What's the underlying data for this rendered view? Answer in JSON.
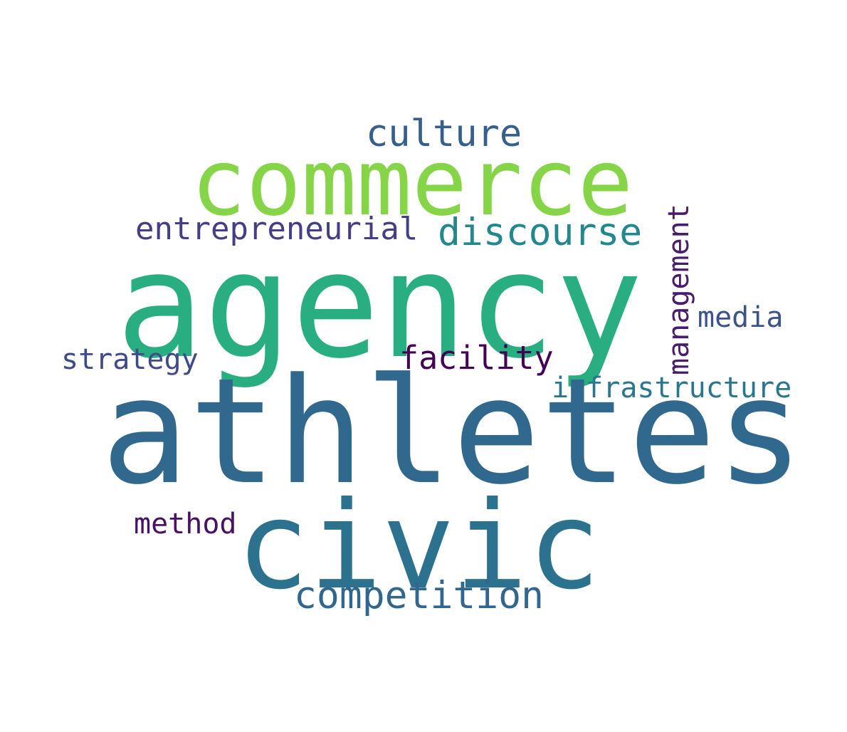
{
  "words": {
    "agency": {
      "text": "agency",
      "color": "#28ae80"
    },
    "athletes": {
      "text": "athletes",
      "color": "#31688e"
    },
    "civic": {
      "text": "civic",
      "color": "#2c728e"
    },
    "commerce": {
      "text": "commerce",
      "color": "#86d549"
    },
    "culture": {
      "text": "culture",
      "color": "#355f8d"
    },
    "discourse": {
      "text": "discourse",
      "color": "#23888e"
    },
    "entrepreneurial": {
      "text": "entrepreneurial",
      "color": "#433e85"
    },
    "competition": {
      "text": "competition",
      "color": "#31668e"
    },
    "facility": {
      "text": "facility",
      "color": "#440154"
    },
    "strategy": {
      "text": "strategy",
      "color": "#3e4a89"
    },
    "method": {
      "text": "method",
      "color": "#471164"
    },
    "media": {
      "text": "media",
      "color": "#3b528b"
    },
    "infrastructure": {
      "text": "infrastructure",
      "color": "#2a768e"
    },
    "management": {
      "text": "management",
      "color": "#481b6d"
    }
  }
}
